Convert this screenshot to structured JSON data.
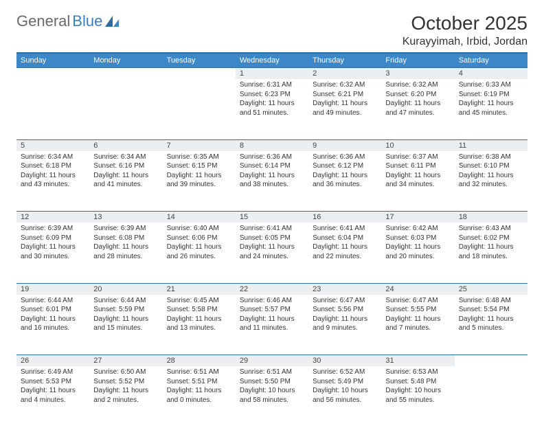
{
  "brand": {
    "part1": "General",
    "part2": "Blue"
  },
  "title": "October 2025",
  "location": "Kurayyimah, Irbid, Jordan",
  "colors": {
    "header_bg": "#3b87c8",
    "header_border": "#2e6da4",
    "daynum_bg": "#ebeff2",
    "text": "#333333",
    "logo_gray": "#6a6a6a",
    "logo_blue": "#3b7fc4"
  },
  "day_names": [
    "Sunday",
    "Monday",
    "Tuesday",
    "Wednesday",
    "Thursday",
    "Friday",
    "Saturday"
  ],
  "weeks": [
    [
      null,
      null,
      null,
      {
        "n": "1",
        "sr": "6:31 AM",
        "ss": "6:23 PM",
        "dl": "11 hours and 51 minutes."
      },
      {
        "n": "2",
        "sr": "6:32 AM",
        "ss": "6:21 PM",
        "dl": "11 hours and 49 minutes."
      },
      {
        "n": "3",
        "sr": "6:32 AM",
        "ss": "6:20 PM",
        "dl": "11 hours and 47 minutes."
      },
      {
        "n": "4",
        "sr": "6:33 AM",
        "ss": "6:19 PM",
        "dl": "11 hours and 45 minutes."
      }
    ],
    [
      {
        "n": "5",
        "sr": "6:34 AM",
        "ss": "6:18 PM",
        "dl": "11 hours and 43 minutes."
      },
      {
        "n": "6",
        "sr": "6:34 AM",
        "ss": "6:16 PM",
        "dl": "11 hours and 41 minutes."
      },
      {
        "n": "7",
        "sr": "6:35 AM",
        "ss": "6:15 PM",
        "dl": "11 hours and 39 minutes."
      },
      {
        "n": "8",
        "sr": "6:36 AM",
        "ss": "6:14 PM",
        "dl": "11 hours and 38 minutes."
      },
      {
        "n": "9",
        "sr": "6:36 AM",
        "ss": "6:12 PM",
        "dl": "11 hours and 36 minutes."
      },
      {
        "n": "10",
        "sr": "6:37 AM",
        "ss": "6:11 PM",
        "dl": "11 hours and 34 minutes."
      },
      {
        "n": "11",
        "sr": "6:38 AM",
        "ss": "6:10 PM",
        "dl": "11 hours and 32 minutes."
      }
    ],
    [
      {
        "n": "12",
        "sr": "6:39 AM",
        "ss": "6:09 PM",
        "dl": "11 hours and 30 minutes."
      },
      {
        "n": "13",
        "sr": "6:39 AM",
        "ss": "6:08 PM",
        "dl": "11 hours and 28 minutes."
      },
      {
        "n": "14",
        "sr": "6:40 AM",
        "ss": "6:06 PM",
        "dl": "11 hours and 26 minutes."
      },
      {
        "n": "15",
        "sr": "6:41 AM",
        "ss": "6:05 PM",
        "dl": "11 hours and 24 minutes."
      },
      {
        "n": "16",
        "sr": "6:41 AM",
        "ss": "6:04 PM",
        "dl": "11 hours and 22 minutes."
      },
      {
        "n": "17",
        "sr": "6:42 AM",
        "ss": "6:03 PM",
        "dl": "11 hours and 20 minutes."
      },
      {
        "n": "18",
        "sr": "6:43 AM",
        "ss": "6:02 PM",
        "dl": "11 hours and 18 minutes."
      }
    ],
    [
      {
        "n": "19",
        "sr": "6:44 AM",
        "ss": "6:01 PM",
        "dl": "11 hours and 16 minutes."
      },
      {
        "n": "20",
        "sr": "6:44 AM",
        "ss": "5:59 PM",
        "dl": "11 hours and 15 minutes."
      },
      {
        "n": "21",
        "sr": "6:45 AM",
        "ss": "5:58 PM",
        "dl": "11 hours and 13 minutes."
      },
      {
        "n": "22",
        "sr": "6:46 AM",
        "ss": "5:57 PM",
        "dl": "11 hours and 11 minutes."
      },
      {
        "n": "23",
        "sr": "6:47 AM",
        "ss": "5:56 PM",
        "dl": "11 hours and 9 minutes."
      },
      {
        "n": "24",
        "sr": "6:47 AM",
        "ss": "5:55 PM",
        "dl": "11 hours and 7 minutes."
      },
      {
        "n": "25",
        "sr": "6:48 AM",
        "ss": "5:54 PM",
        "dl": "11 hours and 5 minutes."
      }
    ],
    [
      {
        "n": "26",
        "sr": "6:49 AM",
        "ss": "5:53 PM",
        "dl": "11 hours and 4 minutes."
      },
      {
        "n": "27",
        "sr": "6:50 AM",
        "ss": "5:52 PM",
        "dl": "11 hours and 2 minutes."
      },
      {
        "n": "28",
        "sr": "6:51 AM",
        "ss": "5:51 PM",
        "dl": "11 hours and 0 minutes."
      },
      {
        "n": "29",
        "sr": "6:51 AM",
        "ss": "5:50 PM",
        "dl": "10 hours and 58 minutes."
      },
      {
        "n": "30",
        "sr": "6:52 AM",
        "ss": "5:49 PM",
        "dl": "10 hours and 56 minutes."
      },
      {
        "n": "31",
        "sr": "6:53 AM",
        "ss": "5:48 PM",
        "dl": "10 hours and 55 minutes."
      },
      null
    ]
  ],
  "labels": {
    "sunrise": "Sunrise:",
    "sunset": "Sunset:",
    "daylight": "Daylight:"
  }
}
